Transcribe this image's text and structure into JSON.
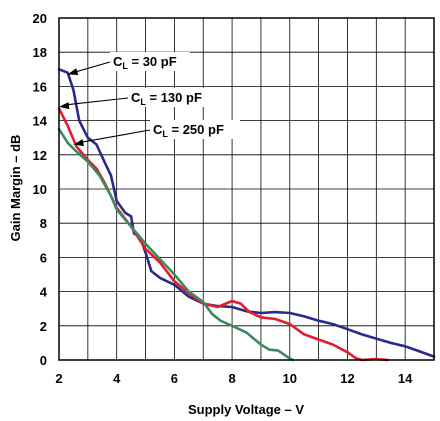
{
  "chart_data": {
    "type": "line",
    "xlabel": "Supply Voltage – V",
    "ylabel": "Gain Margin – dB",
    "xlim": [
      2,
      15
    ],
    "ylim": [
      0,
      20
    ],
    "x_ticks": [
      "2",
      "4",
      "6",
      "8",
      "10",
      "12",
      "14"
    ],
    "y_ticks": [
      "0",
      "2",
      "4",
      "6",
      "8",
      "10",
      "12",
      "14",
      "16",
      "18",
      "20"
    ],
    "grid": true,
    "series": [
      {
        "name": "CL = 30 pF",
        "label_main": "C",
        "label_sub": "L",
        "label_rest": " = 30 pF",
        "color": "#2a2a8c",
        "points": [
          [
            2.0,
            17.0
          ],
          [
            2.3,
            16.8
          ],
          [
            2.5,
            15.8
          ],
          [
            2.7,
            14.0
          ],
          [
            3.0,
            13.0
          ],
          [
            3.3,
            12.6
          ],
          [
            3.6,
            11.5
          ],
          [
            3.8,
            10.8
          ],
          [
            4.0,
            9.3
          ],
          [
            4.3,
            8.6
          ],
          [
            4.5,
            8.4
          ],
          [
            4.6,
            7.4
          ],
          [
            4.8,
            7.2
          ],
          [
            5.0,
            6.3
          ],
          [
            5.2,
            5.2
          ],
          [
            5.5,
            4.8
          ],
          [
            6.0,
            4.4
          ],
          [
            6.5,
            3.7
          ],
          [
            7.0,
            3.3
          ],
          [
            7.5,
            3.15
          ],
          [
            8.0,
            3.1
          ],
          [
            8.5,
            2.85
          ],
          [
            9.0,
            2.75
          ],
          [
            9.5,
            2.8
          ],
          [
            10.0,
            2.75
          ],
          [
            10.5,
            2.55
          ],
          [
            11.0,
            2.3
          ],
          [
            11.5,
            2.1
          ],
          [
            12.0,
            1.8
          ],
          [
            12.5,
            1.5
          ],
          [
            13.0,
            1.25
          ],
          [
            13.5,
            1.0
          ],
          [
            14.0,
            0.8
          ],
          [
            14.5,
            0.5
          ],
          [
            15.0,
            0.2
          ]
        ]
      },
      {
        "name": "CL = 130 pF",
        "label_main": "C",
        "label_sub": "L",
        "label_rest": " = 130 pF",
        "color": "#e01f2d",
        "points": [
          [
            2.0,
            14.7
          ],
          [
            2.3,
            13.7
          ],
          [
            2.6,
            12.5
          ],
          [
            3.0,
            11.7
          ],
          [
            3.3,
            11.2
          ],
          [
            3.6,
            10.3
          ],
          [
            4.0,
            8.9
          ],
          [
            4.5,
            7.8
          ],
          [
            5.0,
            6.5
          ],
          [
            5.5,
            5.7
          ],
          [
            6.0,
            4.6
          ],
          [
            6.5,
            3.9
          ],
          [
            7.0,
            3.3
          ],
          [
            7.5,
            3.1
          ],
          [
            8.0,
            3.45
          ],
          [
            8.3,
            3.3
          ],
          [
            8.6,
            2.8
          ],
          [
            9.0,
            2.5
          ],
          [
            9.5,
            2.4
          ],
          [
            10.0,
            2.1
          ],
          [
            10.5,
            1.5
          ],
          [
            11.0,
            1.2
          ],
          [
            11.5,
            0.9
          ],
          [
            12.0,
            0.45
          ],
          [
            12.3,
            0.1
          ],
          [
            12.5,
            0.0
          ],
          [
            13.0,
            0.05
          ],
          [
            13.4,
            0.0
          ]
        ]
      },
      {
        "name": "CL = 250 pF",
        "label_main": "C",
        "label_sub": "L",
        "label_rest": " = 250 pF",
        "color": "#3d8a5e",
        "points": [
          [
            2.0,
            13.5
          ],
          [
            2.3,
            12.7
          ],
          [
            2.6,
            12.2
          ],
          [
            3.0,
            11.6
          ],
          [
            3.4,
            10.8
          ],
          [
            3.8,
            9.6
          ],
          [
            4.0,
            8.8
          ],
          [
            4.5,
            7.8
          ],
          [
            5.0,
            6.8
          ],
          [
            5.5,
            5.9
          ],
          [
            6.0,
            5.0
          ],
          [
            6.5,
            4.0
          ],
          [
            7.0,
            3.4
          ],
          [
            7.3,
            2.7
          ],
          [
            7.6,
            2.3
          ],
          [
            8.0,
            2.0
          ],
          [
            8.5,
            1.6
          ],
          [
            9.0,
            0.9
          ],
          [
            9.3,
            0.6
          ],
          [
            9.6,
            0.55
          ],
          [
            9.9,
            0.2
          ],
          [
            10.1,
            0.0
          ]
        ]
      }
    ]
  }
}
